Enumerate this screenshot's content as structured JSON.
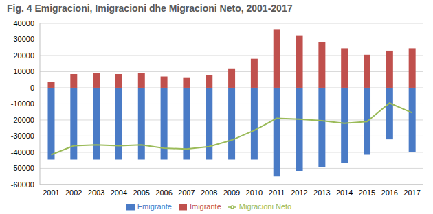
{
  "chart_data": {
    "type": "bar",
    "title": "Fig. 4 Emigracioni, Imigracioni dhe Migracioni Neto, 2001-2017",
    "categories": [
      "2001",
      "2002",
      "2003",
      "2004",
      "2005",
      "2006",
      "2007",
      "2008",
      "2009",
      "2010",
      "2011",
      "2012",
      "2013",
      "2014",
      "2015",
      "2016",
      "2017"
    ],
    "series": [
      {
        "name": "Emigrantë",
        "type": "bar",
        "color": "#4a7bc6",
        "values": [
          -44500,
          -44500,
          -44500,
          -44500,
          -44500,
          -44500,
          -44500,
          -44500,
          -44500,
          -44500,
          -55000,
          -52000,
          -49000,
          -46500,
          -41500,
          -32000,
          -40000
        ]
      },
      {
        "name": "Imigrantë",
        "type": "bar",
        "color": "#c0504d",
        "values": [
          3500,
          8500,
          9000,
          8500,
          9000,
          7000,
          6500,
          8000,
          12000,
          18000,
          36000,
          32500,
          28500,
          24500,
          20500,
          23000,
          24500
        ]
      },
      {
        "name": "Migracioni Neto",
        "type": "line",
        "color": "#9bbb59",
        "values": [
          -41500,
          -36000,
          -35500,
          -36000,
          -35500,
          -37500,
          -38000,
          -36500,
          -32500,
          -26500,
          -19000,
          -19500,
          -20500,
          -22000,
          -21000,
          -9500,
          -15500
        ]
      }
    ],
    "ylim": [
      -60000,
      40000
    ],
    "yticks": [
      -60000,
      -50000,
      -40000,
      -30000,
      -20000,
      -10000,
      0,
      10000,
      20000,
      30000,
      40000
    ],
    "grid": true,
    "stacked": true,
    "legend": "bottom"
  }
}
